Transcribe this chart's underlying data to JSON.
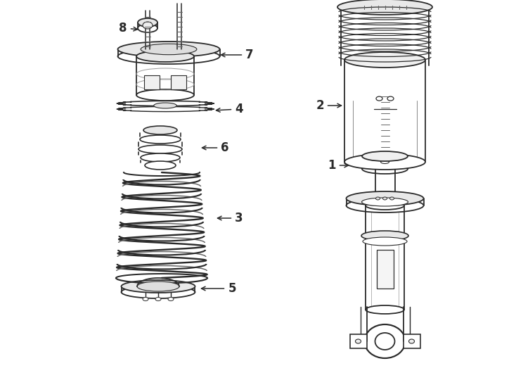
{
  "bg_color": "#ffffff",
  "line_color": "#2a2a2a",
  "line_width": 1.3,
  "label_fontsize": 12,
  "fig_w": 7.34,
  "fig_h": 5.4,
  "dpi": 100
}
